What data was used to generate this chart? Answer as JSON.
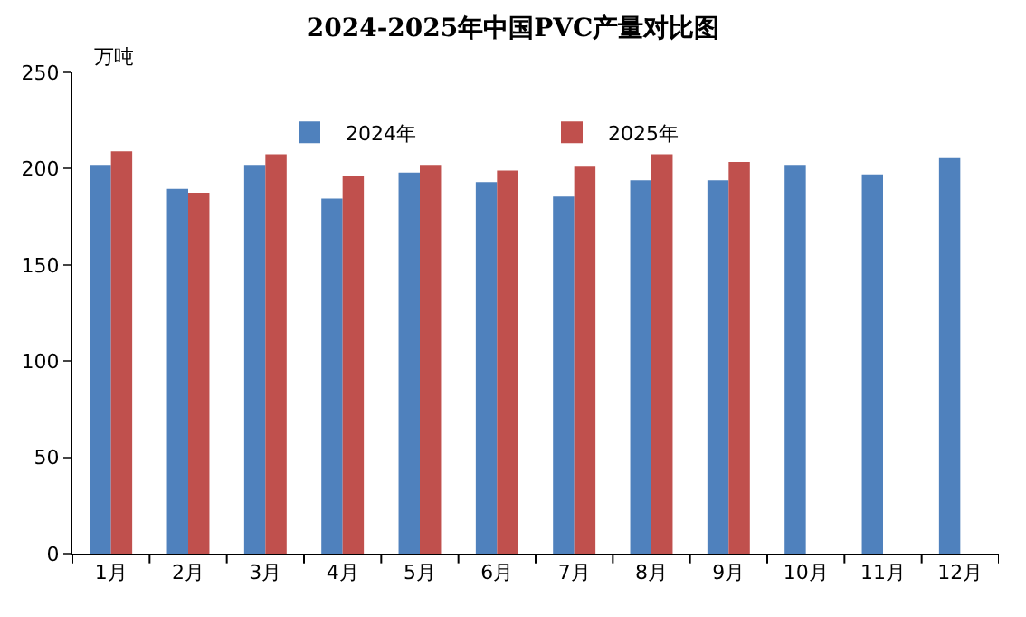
{
  "chart_data": {
    "type": "bar",
    "title": "2024-2025年中国PVC产量对比图",
    "ylabel": "万吨",
    "categories": [
      "1月",
      "2月",
      "3月",
      "4月",
      "5月",
      "6月",
      "7月",
      "8月",
      "9月",
      "10月",
      "11月",
      "12月"
    ],
    "series": [
      {
        "name": "2024年",
        "color": "#4f81bd",
        "values": [
          202,
          189.5,
          202,
          184.5,
          198,
          193,
          185.5,
          194,
          194,
          202,
          197,
          205.5
        ]
      },
      {
        "name": "2025年",
        "color": "#c0504d",
        "values": [
          209,
          187.5,
          207.5,
          196,
          202,
          199,
          201,
          207.5,
          203.5,
          null,
          null,
          null
        ]
      }
    ],
    "ylim": [
      0,
      250
    ],
    "yticks": [
      0,
      50,
      100,
      150,
      200,
      250
    ],
    "grid": false,
    "legend": "top"
  }
}
